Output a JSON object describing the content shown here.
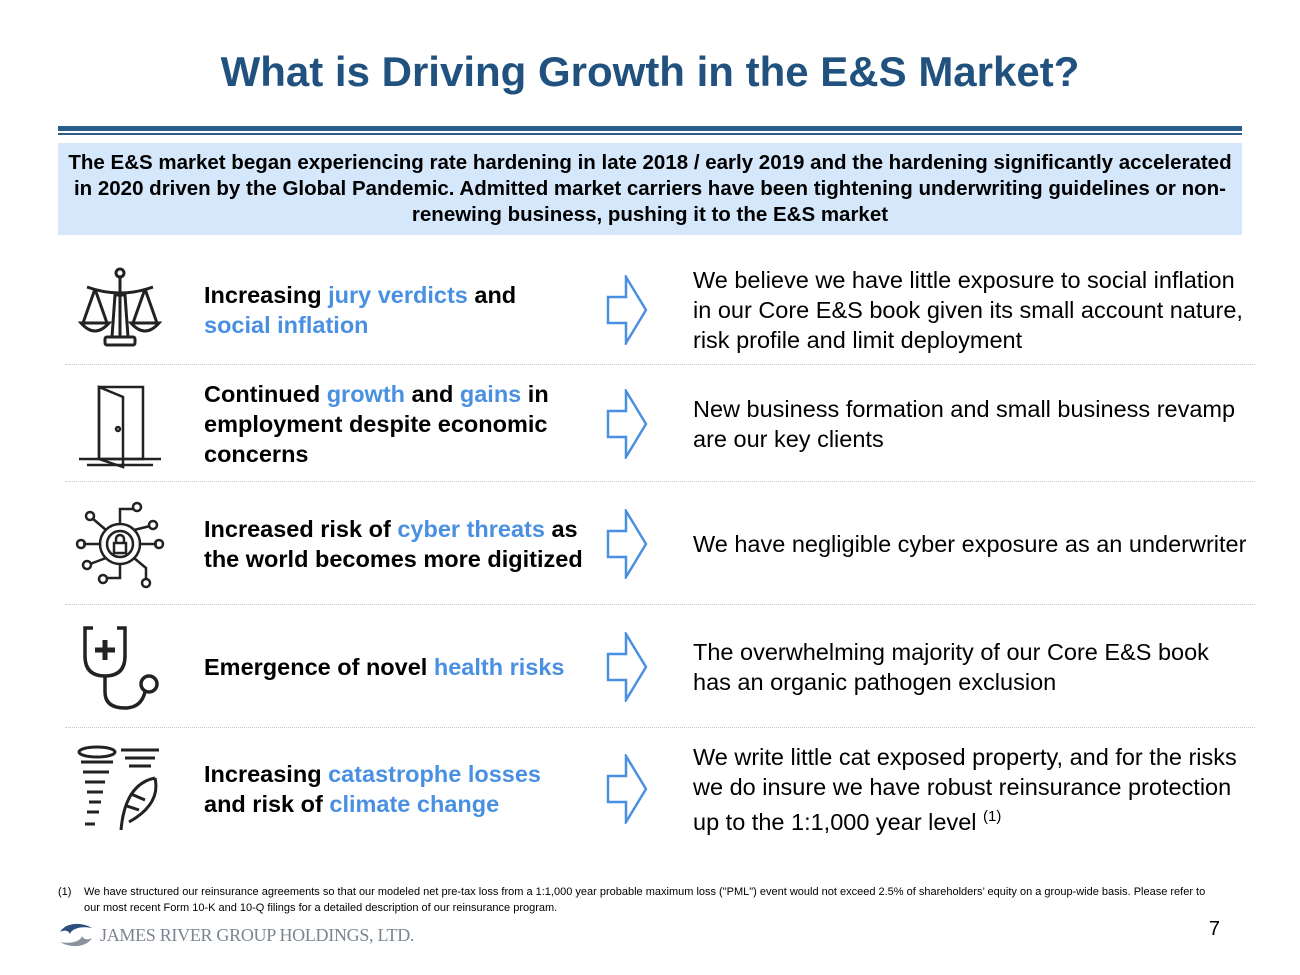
{
  "title": "What is Driving Growth in the E&S Market?",
  "banner": "The E&S market began experiencing rate hardening in late 2018 / early 2019 and the hardening significantly accelerated in 2020 driven by the Global Pandemic. Admitted market carriers have been tightening underwriting guidelines or non-renewing business, pushing it to the E&S market",
  "colors": {
    "title": "#21527f",
    "highlight": "#4a90e2",
    "banner_bg": "#d5e7fb"
  },
  "rows": [
    {
      "icon": "scales-of-justice-icon",
      "driver": [
        {
          "t": "Increasing ",
          "hl": false
        },
        {
          "t": "jury verdicts",
          "hl": true
        },
        {
          "t": " and ",
          "hl": false
        },
        {
          "t": "social inflation",
          "hl": true
        }
      ],
      "impact": "We believe we have little exposure to social inflation in our Core E&S book given its small account nature, risk profile and limit deployment"
    },
    {
      "icon": "door-icon",
      "driver": [
        {
          "t": "Continued ",
          "hl": false
        },
        {
          "t": "growth",
          "hl": true
        },
        {
          "t": " and ",
          "hl": false
        },
        {
          "t": "gains",
          "hl": true
        },
        {
          "t": " in employment despite economic concerns",
          "hl": false
        }
      ],
      "impact": "New business formation and small business revamp are our key clients"
    },
    {
      "icon": "cyber-lock-icon",
      "driver": [
        {
          "t": "Increased risk of ",
          "hl": false
        },
        {
          "t": "cyber threats",
          "hl": true
        },
        {
          "t": " as the world becomes more digitized",
          "hl": false
        }
      ],
      "impact": "We have negligible cyber exposure as an underwriter"
    },
    {
      "icon": "stethoscope-icon",
      "driver": [
        {
          "t": "Emergence of novel ",
          "hl": false
        },
        {
          "t": "health risks",
          "hl": true
        }
      ],
      "impact": "The overwhelming majority of our Core E&S book has an organic pathogen exclusion"
    },
    {
      "icon": "tornado-wind-icon",
      "driver": [
        {
          "t": "Increasing ",
          "hl": false
        },
        {
          "t": "catastrophe losses",
          "hl": true
        },
        {
          "t": " and risk of ",
          "hl": false
        },
        {
          "t": "climate change",
          "hl": true
        }
      ],
      "impact": "We write little cat exposed property, and for the risks we do insure we have robust reinsurance protection up to the 1:1,000 year level",
      "impact_sup": "(1)"
    }
  ],
  "footnote": {
    "num": "(1)",
    "text": "We have structured our reinsurance agreements so that our modeled net pre-tax loss from a 1:1,000 year probable maximum loss (\"PML\") event would not exceed 2.5% of shareholders’ equity on a group-wide basis. Please refer to our most recent Form 10-K and 10-Q filings for a detailed description of our reinsurance program."
  },
  "logo_text": "JAMES RIVER GROUP HOLDINGS, LTD.",
  "page_number": "7"
}
